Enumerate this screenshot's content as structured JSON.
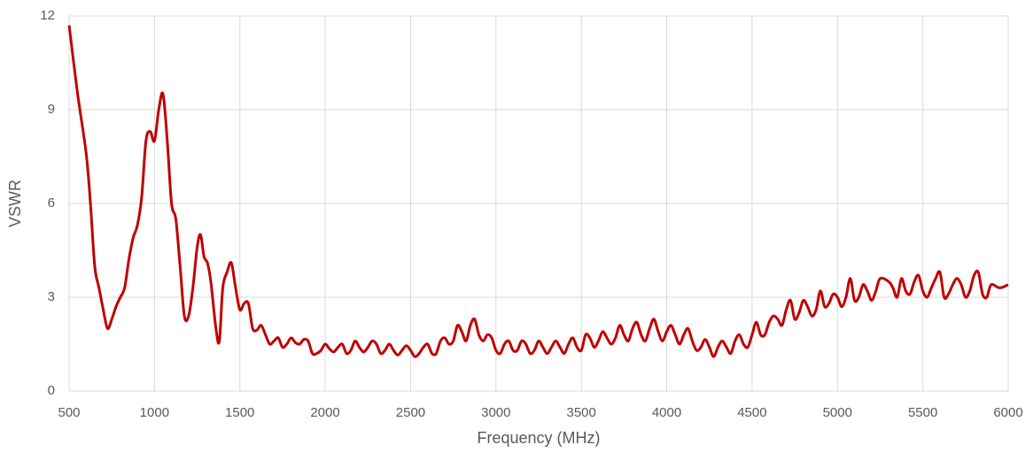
{
  "chart_data": {
    "type": "line",
    "x_label": "Frequency (MHz)",
    "y_label": "VSWR",
    "x": [
      500,
      550,
      600,
      625,
      650,
      675,
      700,
      725,
      750,
      775,
      800,
      825,
      850,
      875,
      900,
      925,
      950,
      975,
      1000,
      1025,
      1050,
      1075,
      1100,
      1125,
      1150,
      1175,
      1200,
      1225,
      1250,
      1270,
      1290,
      1310,
      1330,
      1360,
      1380,
      1400,
      1425,
      1450,
      1475,
      1500,
      1525,
      1550,
      1575,
      1600,
      1625,
      1650,
      1675,
      1700,
      1725,
      1750,
      1775,
      1800,
      1825,
      1850,
      1875,
      1900,
      1925,
      1950,
      1975,
      2000,
      2025,
      2050,
      2075,
      2100,
      2125,
      2150,
      2175,
      2200,
      2225,
      2250,
      2275,
      2300,
      2325,
      2350,
      2375,
      2400,
      2425,
      2450,
      2475,
      2500,
      2525,
      2550,
      2575,
      2600,
      2625,
      2650,
      2675,
      2700,
      2725,
      2750,
      2775,
      2800,
      2825,
      2850,
      2875,
      2900,
      2925,
      2950,
      2975,
      3000,
      3025,
      3050,
      3075,
      3100,
      3125,
      3150,
      3175,
      3200,
      3225,
      3250,
      3275,
      3300,
      3325,
      3350,
      3375,
      3400,
      3425,
      3450,
      3475,
      3500,
      3525,
      3550,
      3575,
      3600,
      3625,
      3650,
      3675,
      3700,
      3725,
      3750,
      3775,
      3800,
      3825,
      3850,
      3875,
      3900,
      3925,
      3950,
      3975,
      4000,
      4025,
      4050,
      4075,
      4100,
      4125,
      4150,
      4175,
      4200,
      4225,
      4250,
      4275,
      4300,
      4325,
      4350,
      4375,
      4400,
      4425,
      4450,
      4475,
      4500,
      4525,
      4550,
      4575,
      4600,
      4625,
      4650,
      4675,
      4700,
      4725,
      4750,
      4775,
      4800,
      4825,
      4850,
      4875,
      4900,
      4925,
      4950,
      4975,
      5000,
      5025,
      5050,
      5075,
      5100,
      5125,
      5150,
      5175,
      5200,
      5225,
      5250,
      5300,
      5325,
      5350,
      5375,
      5400,
      5425,
      5450,
      5475,
      5500,
      5525,
      5550,
      5575,
      5600,
      5625,
      5650,
      5675,
      5700,
      5725,
      5750,
      5775,
      5800,
      5825,
      5850,
      5875,
      5900,
      5950,
      6000
    ],
    "series": [
      {
        "color": "#c00000",
        "values": [
          11.7,
          9.5,
          7.6,
          6.0,
          4.0,
          3.3,
          2.6,
          2.0,
          2.3,
          2.7,
          3.0,
          3.3,
          4.2,
          4.9,
          5.3,
          6.2,
          8.0,
          8.3,
          8.0,
          9.0,
          9.5,
          8.0,
          6.0,
          5.5,
          4.0,
          2.4,
          2.4,
          3.3,
          4.6,
          5.0,
          4.3,
          4.1,
          3.5,
          2.0,
          1.6,
          3.3,
          3.8,
          4.1,
          3.3,
          2.6,
          2.8,
          2.8,
          2.0,
          1.95,
          2.1,
          1.8,
          1.5,
          1.6,
          1.7,
          1.4,
          1.5,
          1.7,
          1.55,
          1.5,
          1.65,
          1.6,
          1.2,
          1.2,
          1.3,
          1.5,
          1.35,
          1.25,
          1.4,
          1.5,
          1.2,
          1.3,
          1.6,
          1.4,
          1.25,
          1.4,
          1.6,
          1.5,
          1.2,
          1.3,
          1.5,
          1.3,
          1.15,
          1.3,
          1.45,
          1.3,
          1.1,
          1.2,
          1.4,
          1.5,
          1.2,
          1.2,
          1.6,
          1.7,
          1.5,
          1.6,
          2.1,
          1.9,
          1.6,
          2.1,
          2.3,
          1.8,
          1.6,
          1.8,
          1.7,
          1.3,
          1.2,
          1.5,
          1.6,
          1.3,
          1.3,
          1.6,
          1.5,
          1.2,
          1.3,
          1.6,
          1.4,
          1.2,
          1.4,
          1.6,
          1.4,
          1.2,
          1.5,
          1.7,
          1.4,
          1.3,
          1.8,
          1.7,
          1.4,
          1.6,
          1.9,
          1.7,
          1.5,
          1.7,
          2.1,
          1.8,
          1.6,
          2.0,
          2.2,
          1.8,
          1.6,
          2.0,
          2.3,
          1.9,
          1.6,
          1.9,
          2.1,
          1.8,
          1.5,
          1.8,
          2.0,
          1.6,
          1.3,
          1.4,
          1.65,
          1.4,
          1.1,
          1.4,
          1.6,
          1.4,
          1.2,
          1.6,
          1.8,
          1.5,
          1.4,
          1.8,
          2.2,
          1.8,
          1.8,
          2.2,
          2.4,
          2.3,
          2.1,
          2.6,
          2.9,
          2.3,
          2.5,
          2.9,
          2.7,
          2.4,
          2.6,
          3.2,
          2.7,
          2.8,
          3.1,
          3.0,
          2.7,
          3.0,
          3.6,
          2.9,
          3.0,
          3.4,
          3.2,
          2.9,
          3.2,
          3.6,
          3.5,
          3.3,
          3.0,
          3.6,
          3.2,
          3.1,
          3.5,
          3.7,
          3.2,
          3.0,
          3.3,
          3.6,
          3.8,
          3.0,
          3.1,
          3.4,
          3.6,
          3.4,
          3.0,
          3.2,
          3.7,
          3.8,
          3.1,
          3.0,
          3.4,
          3.3,
          3.4
        ]
      }
    ],
    "xlim": [
      500,
      6000
    ],
    "ylim": [
      0,
      12
    ],
    "xticks": [
      500,
      1000,
      1500,
      2000,
      2500,
      3000,
      3500,
      4000,
      4500,
      5000,
      5500,
      6000
    ],
    "yticks": [
      0,
      3,
      6,
      9,
      12
    ],
    "grid": true
  }
}
